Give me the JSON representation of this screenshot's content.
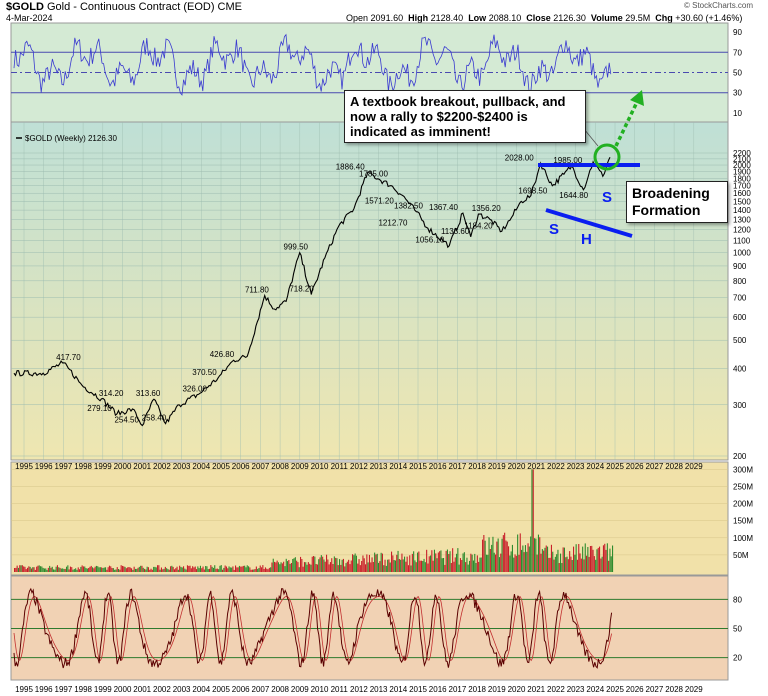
{
  "header": {
    "symbol": "$GOLD",
    "name": "Gold - Continuous Contract (EOD)",
    "exchange": "CME",
    "date": "4-Mar-2024",
    "open_label": "Open",
    "open": "2091.60",
    "high_label": "High",
    "high": "2128.40",
    "low_label": "Low",
    "low": "2088.10",
    "close_label": "Close",
    "close": "2126.30",
    "volume_label": "Volume",
    "volume": "29.5M",
    "chg_label": "Chg",
    "chg": "+30.60 (+1.46%)",
    "watermark": "© StockCharts.com"
  },
  "annotations": {
    "breakout_note": "A textbook breakout, pullback, and now a rally to $2200-$2400 is indicated as imminent!",
    "broadening_note": "Broadening Formation",
    "s_left": "S",
    "h": "H",
    "s_right": "S"
  },
  "colors": {
    "price_line": "#000000",
    "rsi_line": "#3a3ad0",
    "bands_line": "#5a0000",
    "volume_up": "#c8202a",
    "volume_down": "#2e8b2e",
    "trendline": "#0a1ef0",
    "arrow": "#22b022",
    "circle": "#22b022",
    "top_panel_bg": "#d4ead4",
    "price_bg_top": "#bfe0d6",
    "price_bg_bottom": "#efe6b0",
    "volume_bg": "#f1e1a9",
    "osc_bg": "#f1d2b4"
  },
  "chart_data": [
    {
      "type": "line",
      "panel": "RSI (top indicator)",
      "yticks": [
        90,
        70,
        50,
        30,
        10
      ],
      "ylim": [
        0,
        100
      ],
      "reference_lines": [
        70,
        50,
        30
      ]
    },
    {
      "type": "line",
      "panel": "price",
      "legend": "$GOLD (Weekly) 2126.30",
      "yscale": "log",
      "ylim": [
        200,
        2300
      ],
      "yticks": [
        2200,
        2100,
        2000,
        1900,
        1800,
        1700,
        1600,
        1500,
        1400,
        1300,
        1200,
        1100,
        1000,
        900,
        800,
        700,
        600,
        500,
        400,
        300,
        200
      ],
      "x": [
        1993.5,
        1995.0,
        1996.0,
        1996.3,
        1997.0,
        1998.0,
        1998.8,
        1999.6,
        2000.1,
        2000.7,
        2001.3,
        2002.0,
        2003.0,
        2004.0,
        2004.8,
        2005.5,
        2006.4,
        2006.9,
        2007.5,
        2008.2,
        2008.8,
        2009.5,
        2010.2,
        2011.0,
        2011.7,
        2012.3,
        2012.9,
        2013.5,
        2014.2,
        2014.8,
        2015.9,
        2016.6,
        2017.0,
        2017.4,
        2018.0,
        2018.6,
        2019.1,
        2019.6,
        2020.1,
        2020.6,
        2021.2,
        2021.8,
        2022.2,
        2022.8,
        2023.3,
        2023.8,
        2024.05,
        2024.17
      ],
      "values": [
        385,
        385,
        417.7,
        400,
        350,
        314.2,
        279.1,
        290,
        254.5,
        313.6,
        258.4,
        300,
        326,
        370.5,
        426.8,
        440,
        711.8,
        640,
        680,
        999.5,
        718.2,
        960,
        1230,
        1420,
        1886.4,
        1785,
        1700,
        1571.2,
        1382.5,
        1212.7,
        1056.1,
        1367.4,
        1133.6,
        1356.2,
        1300,
        1184.2,
        1320,
        1500,
        1570,
        2028,
        1698.5,
        1860,
        1985,
        1644.8,
        2050,
        1830,
        2040,
        2126.3
      ],
      "labels": [
        {
          "text": "417.70",
          "x": 1996.3,
          "y": 417.7
        },
        {
          "text": "314.20",
          "x": 1998.5,
          "y": 314.2
        },
        {
          "text": "279.10",
          "x": 1997.9,
          "y": 279.1
        },
        {
          "text": "313.60",
          "x": 2000.4,
          "y": 313.6
        },
        {
          "text": "254.50",
          "x": 1999.3,
          "y": 254.5
        },
        {
          "text": "258.40",
          "x": 2000.7,
          "y": 258.4
        },
        {
          "text": "370.50",
          "x": 2003.3,
          "y": 370.5
        },
        {
          "text": "426.80",
          "x": 2004.2,
          "y": 426.8
        },
        {
          "text": "326.00",
          "x": 2002.8,
          "y": 326.0
        },
        {
          "text": "711.80",
          "x": 2006.0,
          "y": 711.8
        },
        {
          "text": "999.50",
          "x": 2008.0,
          "y": 999.5
        },
        {
          "text": "718.20",
          "x": 2008.3,
          "y": 718.2
        },
        {
          "text": "1886.40",
          "x": 2010.8,
          "y": 1886.4
        },
        {
          "text": "1785.00",
          "x": 2012.0,
          "y": 1785.0
        },
        {
          "text": "1571.20",
          "x": 2012.3,
          "y": 1571.2
        },
        {
          "text": "1382.50",
          "x": 2013.8,
          "y": 1382.5
        },
        {
          "text": "1212.70",
          "x": 2013.0,
          "y": 1212.7
        },
        {
          "text": "1367.40",
          "x": 2015.6,
          "y": 1367.4
        },
        {
          "text": "1356.20",
          "x": 2017.8,
          "y": 1356.2
        },
        {
          "text": "1056.10",
          "x": 2014.9,
          "y": 1056.1
        },
        {
          "text": "1133.60",
          "x": 2016.2,
          "y": 1133.6
        },
        {
          "text": "1184.20",
          "x": 2017.4,
          "y": 1184.2
        },
        {
          "text": "2028.00",
          "x": 2019.5,
          "y": 2028.0
        },
        {
          "text": "1985.00",
          "x": 2022.0,
          "y": 1985.0
        },
        {
          "text": "1698.50",
          "x": 2020.2,
          "y": 1698.5
        },
        {
          "text": "1644.80",
          "x": 2022.3,
          "y": 1644.8
        }
      ],
      "x_tick_labels": [
        "1995",
        "1996",
        "1997",
        "1998",
        "1999",
        "2000",
        "2001",
        "2002",
        "2003",
        "2004",
        "2005",
        "2006",
        "2007",
        "2008",
        "2009",
        "2010",
        "2011",
        "2012",
        "2013",
        "2014",
        "2015",
        "2016",
        "2017",
        "2018",
        "2019",
        "2020",
        "2021",
        "2022",
        "2023",
        "2024",
        "2025",
        "2026",
        "2027",
        "2028",
        "2029"
      ]
    },
    {
      "type": "bar",
      "panel": "volume",
      "yticks_text": [
        "300M",
        "250M",
        "200M",
        "150M",
        "100M",
        "50M"
      ],
      "ylim": [
        0,
        310
      ]
    },
    {
      "type": "line",
      "panel": "oscillator (bottom)",
      "yticks": [
        80,
        50,
        20
      ],
      "ylim": [
        0,
        100
      ],
      "reference_lines": [
        80,
        50,
        20
      ],
      "x_tick_labels": [
        "1995",
        "1996",
        "1997",
        "1998",
        "1999",
        "2000",
        "2001",
        "2002",
        "2003",
        "2004",
        "2005",
        "2006",
        "2007",
        "2008",
        "2009",
        "2010",
        "2011",
        "2012",
        "2013",
        "2014",
        "2015",
        "2016",
        "2017",
        "2018",
        "2019",
        "2020",
        "2021",
        "2022",
        "2023",
        "2024",
        "2025",
        "2026",
        "2027",
        "2028",
        "2029"
      ]
    }
  ]
}
